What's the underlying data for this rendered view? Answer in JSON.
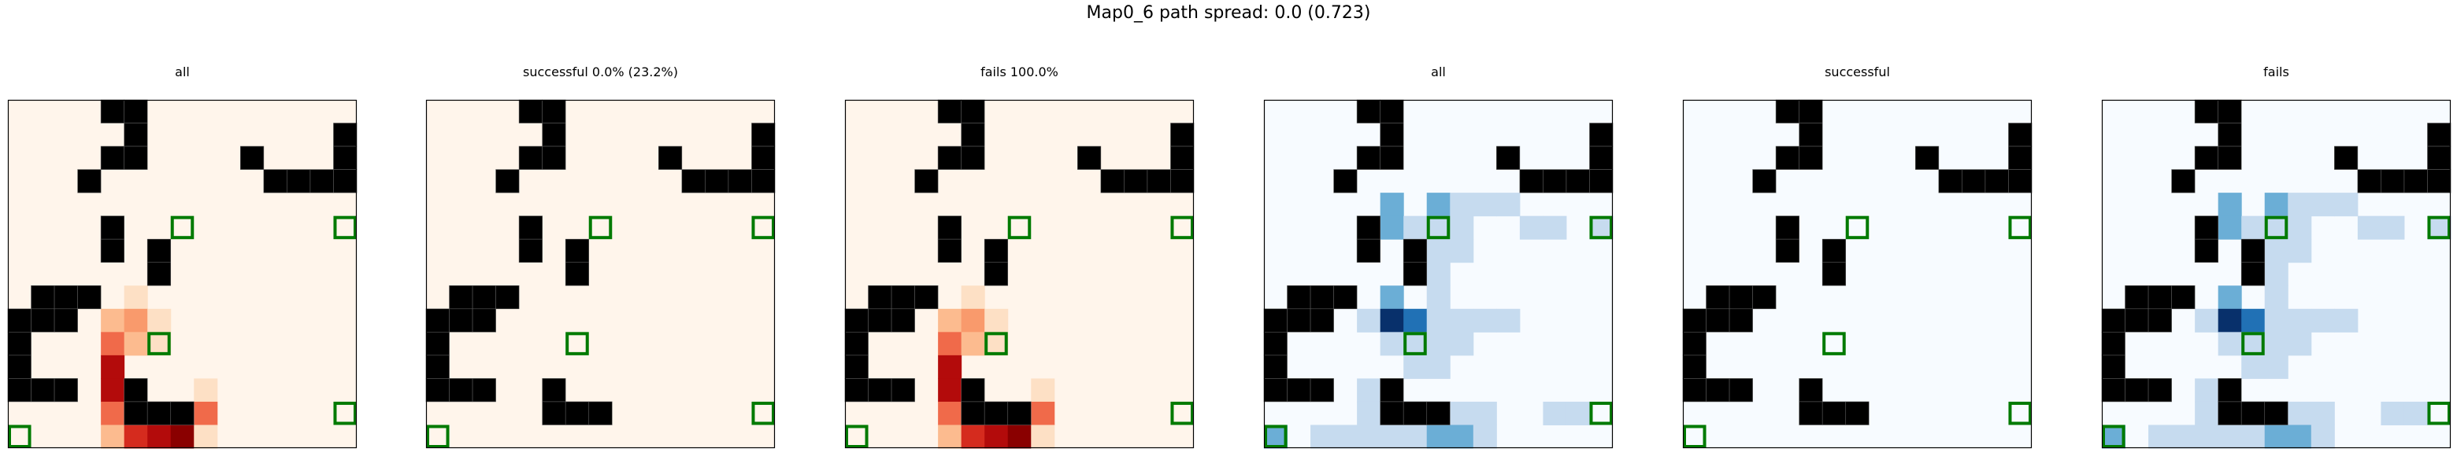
{
  "suptitle": "Map0_6 path spread: 0.0 (0.723)",
  "chart_data": {
    "type": "heatmap",
    "grid_size": [
      15,
      15
    ],
    "grid_lines": false,
    "colors": {
      "wall": "#000000",
      "goal_outline": "#007a00",
      "frame": "#000000",
      "oranges": [
        "#fff5eb",
        "#fee6ce",
        "#fdd0a2",
        "#fdae6b",
        "#fd8d3c",
        "#f16913",
        "#d94801",
        "#a63603",
        "#7f2704"
      ],
      "reds_path": [
        "#fff5eb",
        "#fde0c5",
        "#fcbb8f",
        "#f99a6c",
        "#f06a4a",
        "#d52b1e",
        "#b30b0b",
        "#8a0000"
      ],
      "blues": [
        "#f7fbff",
        "#c6dbef",
        "#6baed6",
        "#2171b5",
        "#08306b"
      ]
    },
    "walls": [
      [
        4,
        0
      ],
      [
        5,
        0
      ],
      [
        5,
        1
      ],
      [
        14,
        1
      ],
      [
        4,
        2
      ],
      [
        5,
        2
      ],
      [
        10,
        2
      ],
      [
        14,
        2
      ],
      [
        3,
        3
      ],
      [
        11,
        3
      ],
      [
        12,
        3
      ],
      [
        13,
        3
      ],
      [
        14,
        3
      ],
      [
        4,
        5
      ],
      [
        4,
        6
      ],
      [
        6,
        6
      ],
      [
        6,
        7
      ],
      [
        1,
        8
      ],
      [
        2,
        8
      ],
      [
        3,
        8
      ],
      [
        0,
        9
      ],
      [
        1,
        9
      ],
      [
        2,
        9
      ],
      [
        0,
        10
      ],
      [
        0,
        11
      ],
      [
        0,
        12
      ],
      [
        1,
        12
      ],
      [
        2,
        12
      ],
      [
        5,
        12
      ],
      [
        5,
        13
      ],
      [
        6,
        13
      ],
      [
        7,
        13
      ]
    ],
    "goals": [
      [
        7,
        5
      ],
      [
        14,
        5
      ],
      [
        6,
        10
      ],
      [
        14,
        13
      ],
      [
        0,
        14
      ]
    ],
    "panels": [
      {
        "title": "all",
        "colormap": "oranges",
        "cells": [
          {
            "x": 5,
            "y": 8,
            "v": 1
          },
          {
            "x": 4,
            "y": 9,
            "v": 2
          },
          {
            "x": 5,
            "y": 9,
            "v": 3
          },
          {
            "x": 6,
            "y": 9,
            "v": 1
          },
          {
            "x": 4,
            "y": 10,
            "v": 4
          },
          {
            "x": 5,
            "y": 10,
            "v": 2
          },
          {
            "x": 6,
            "y": 10,
            "v": 1
          },
          {
            "x": 4,
            "y": 11,
            "v": 6
          },
          {
            "x": 4,
            "y": 12,
            "v": 6
          },
          {
            "x": 8,
            "y": 12,
            "v": 1
          },
          {
            "x": 4,
            "y": 13,
            "v": 4
          },
          {
            "x": 5,
            "y": 13,
            "v": 2
          },
          {
            "x": 6,
            "y": 13,
            "v": 1
          },
          {
            "x": 7,
            "y": 13,
            "v": 4
          },
          {
            "x": 8,
            "y": 13,
            "v": 4
          },
          {
            "x": 4,
            "y": 14,
            "v": 2
          },
          {
            "x": 5,
            "y": 14,
            "v": 5
          },
          {
            "x": 6,
            "y": 14,
            "v": 6
          },
          {
            "x": 7,
            "y": 14,
            "v": 7
          },
          {
            "x": 8,
            "y": 14,
            "v": 1
          }
        ]
      },
      {
        "title": "successful 0.0% (23.2%)",
        "colormap": "oranges",
        "cells": []
      },
      {
        "title": "fails 100.0%",
        "colormap": "oranges",
        "cells": [
          {
            "x": 5,
            "y": 8,
            "v": 1
          },
          {
            "x": 4,
            "y": 9,
            "v": 2
          },
          {
            "x": 5,
            "y": 9,
            "v": 3
          },
          {
            "x": 6,
            "y": 9,
            "v": 1
          },
          {
            "x": 4,
            "y": 10,
            "v": 4
          },
          {
            "x": 5,
            "y": 10,
            "v": 2
          },
          {
            "x": 6,
            "y": 10,
            "v": 1
          },
          {
            "x": 4,
            "y": 11,
            "v": 6
          },
          {
            "x": 4,
            "y": 12,
            "v": 6
          },
          {
            "x": 8,
            "y": 12,
            "v": 1
          },
          {
            "x": 4,
            "y": 13,
            "v": 4
          },
          {
            "x": 5,
            "y": 13,
            "v": 2
          },
          {
            "x": 6,
            "y": 13,
            "v": 1
          },
          {
            "x": 7,
            "y": 13,
            "v": 4
          },
          {
            "x": 8,
            "y": 13,
            "v": 4
          },
          {
            "x": 4,
            "y": 14,
            "v": 2
          },
          {
            "x": 5,
            "y": 14,
            "v": 5
          },
          {
            "x": 6,
            "y": 14,
            "v": 6
          },
          {
            "x": 7,
            "y": 14,
            "v": 7
          },
          {
            "x": 8,
            "y": 14,
            "v": 1
          }
        ]
      },
      {
        "title": "all",
        "colormap": "blues",
        "cells": [
          {
            "x": 5,
            "y": 4,
            "v": 2
          },
          {
            "x": 7,
            "y": 4,
            "v": 2
          },
          {
            "x": 8,
            "y": 4,
            "v": 1
          },
          {
            "x": 9,
            "y": 4,
            "v": 1
          },
          {
            "x": 10,
            "y": 4,
            "v": 1
          },
          {
            "x": 5,
            "y": 5,
            "v": 2
          },
          {
            "x": 6,
            "y": 5,
            "v": 1
          },
          {
            "x": 7,
            "y": 5,
            "v": 1
          },
          {
            "x": 8,
            "y": 5,
            "v": 1
          },
          {
            "x": 11,
            "y": 5,
            "v": 1
          },
          {
            "x": 12,
            "y": 5,
            "v": 1
          },
          {
            "x": 14,
            "y": 5,
            "v": 1
          },
          {
            "x": 7,
            "y": 6,
            "v": 1
          },
          {
            "x": 8,
            "y": 6,
            "v": 1
          },
          {
            "x": 7,
            "y": 7,
            "v": 1
          },
          {
            "x": 5,
            "y": 8,
            "v": 2
          },
          {
            "x": 7,
            "y": 8,
            "v": 1
          },
          {
            "x": 4,
            "y": 9,
            "v": 1
          },
          {
            "x": 5,
            "y": 9,
            "v": 4
          },
          {
            "x": 6,
            "y": 9,
            "v": 3
          },
          {
            "x": 7,
            "y": 9,
            "v": 1
          },
          {
            "x": 8,
            "y": 9,
            "v": 1
          },
          {
            "x": 9,
            "y": 9,
            "v": 1
          },
          {
            "x": 10,
            "y": 9,
            "v": 1
          },
          {
            "x": 5,
            "y": 10,
            "v": 1
          },
          {
            "x": 6,
            "y": 10,
            "v": 1
          },
          {
            "x": 7,
            "y": 10,
            "v": 1
          },
          {
            "x": 8,
            "y": 10,
            "v": 1
          },
          {
            "x": 6,
            "y": 11,
            "v": 1
          },
          {
            "x": 7,
            "y": 11,
            "v": 1
          },
          {
            "x": 4,
            "y": 12,
            "v": 1
          },
          {
            "x": 4,
            "y": 13,
            "v": 1
          },
          {
            "x": 8,
            "y": 13,
            "v": 1
          },
          {
            "x": 9,
            "y": 13,
            "v": 1
          },
          {
            "x": 12,
            "y": 13,
            "v": 1
          },
          {
            "x": 13,
            "y": 13,
            "v": 1
          },
          {
            "x": 0,
            "y": 14,
            "v": 2
          },
          {
            "x": 2,
            "y": 14,
            "v": 1
          },
          {
            "x": 3,
            "y": 14,
            "v": 1
          },
          {
            "x": 4,
            "y": 14,
            "v": 1
          },
          {
            "x": 5,
            "y": 14,
            "v": 1
          },
          {
            "x": 6,
            "y": 14,
            "v": 1
          },
          {
            "x": 7,
            "y": 14,
            "v": 2
          },
          {
            "x": 8,
            "y": 14,
            "v": 2
          },
          {
            "x": 9,
            "y": 14,
            "v": 1
          }
        ]
      },
      {
        "title": "successful",
        "colormap": "blues",
        "cells": []
      },
      {
        "title": "fails",
        "colormap": "blues",
        "cells": [
          {
            "x": 5,
            "y": 4,
            "v": 2
          },
          {
            "x": 7,
            "y": 4,
            "v": 2
          },
          {
            "x": 8,
            "y": 4,
            "v": 1
          },
          {
            "x": 9,
            "y": 4,
            "v": 1
          },
          {
            "x": 10,
            "y": 4,
            "v": 1
          },
          {
            "x": 5,
            "y": 5,
            "v": 2
          },
          {
            "x": 6,
            "y": 5,
            "v": 1
          },
          {
            "x": 7,
            "y": 5,
            "v": 1
          },
          {
            "x": 8,
            "y": 5,
            "v": 1
          },
          {
            "x": 11,
            "y": 5,
            "v": 1
          },
          {
            "x": 12,
            "y": 5,
            "v": 1
          },
          {
            "x": 14,
            "y": 5,
            "v": 1
          },
          {
            "x": 7,
            "y": 6,
            "v": 1
          },
          {
            "x": 8,
            "y": 6,
            "v": 1
          },
          {
            "x": 7,
            "y": 7,
            "v": 1
          },
          {
            "x": 5,
            "y": 8,
            "v": 2
          },
          {
            "x": 7,
            "y": 8,
            "v": 1
          },
          {
            "x": 4,
            "y": 9,
            "v": 1
          },
          {
            "x": 5,
            "y": 9,
            "v": 4
          },
          {
            "x": 6,
            "y": 9,
            "v": 3
          },
          {
            "x": 7,
            "y": 9,
            "v": 1
          },
          {
            "x": 8,
            "y": 9,
            "v": 1
          },
          {
            "x": 9,
            "y": 9,
            "v": 1
          },
          {
            "x": 10,
            "y": 9,
            "v": 1
          },
          {
            "x": 5,
            "y": 10,
            "v": 1
          },
          {
            "x": 6,
            "y": 10,
            "v": 1
          },
          {
            "x": 7,
            "y": 10,
            "v": 1
          },
          {
            "x": 8,
            "y": 10,
            "v": 1
          },
          {
            "x": 6,
            "y": 11,
            "v": 1
          },
          {
            "x": 7,
            "y": 11,
            "v": 1
          },
          {
            "x": 4,
            "y": 12,
            "v": 1
          },
          {
            "x": 4,
            "y": 13,
            "v": 1
          },
          {
            "x": 8,
            "y": 13,
            "v": 1
          },
          {
            "x": 9,
            "y": 13,
            "v": 1
          },
          {
            "x": 12,
            "y": 13,
            "v": 1
          },
          {
            "x": 13,
            "y": 13,
            "v": 1
          },
          {
            "x": 0,
            "y": 14,
            "v": 2
          },
          {
            "x": 2,
            "y": 14,
            "v": 1
          },
          {
            "x": 3,
            "y": 14,
            "v": 1
          },
          {
            "x": 4,
            "y": 14,
            "v": 1
          },
          {
            "x": 5,
            "y": 14,
            "v": 1
          },
          {
            "x": 6,
            "y": 14,
            "v": 1
          },
          {
            "x": 7,
            "y": 14,
            "v": 2
          },
          {
            "x": 8,
            "y": 14,
            "v": 2
          },
          {
            "x": 9,
            "y": 14,
            "v": 1
          }
        ]
      }
    ]
  }
}
